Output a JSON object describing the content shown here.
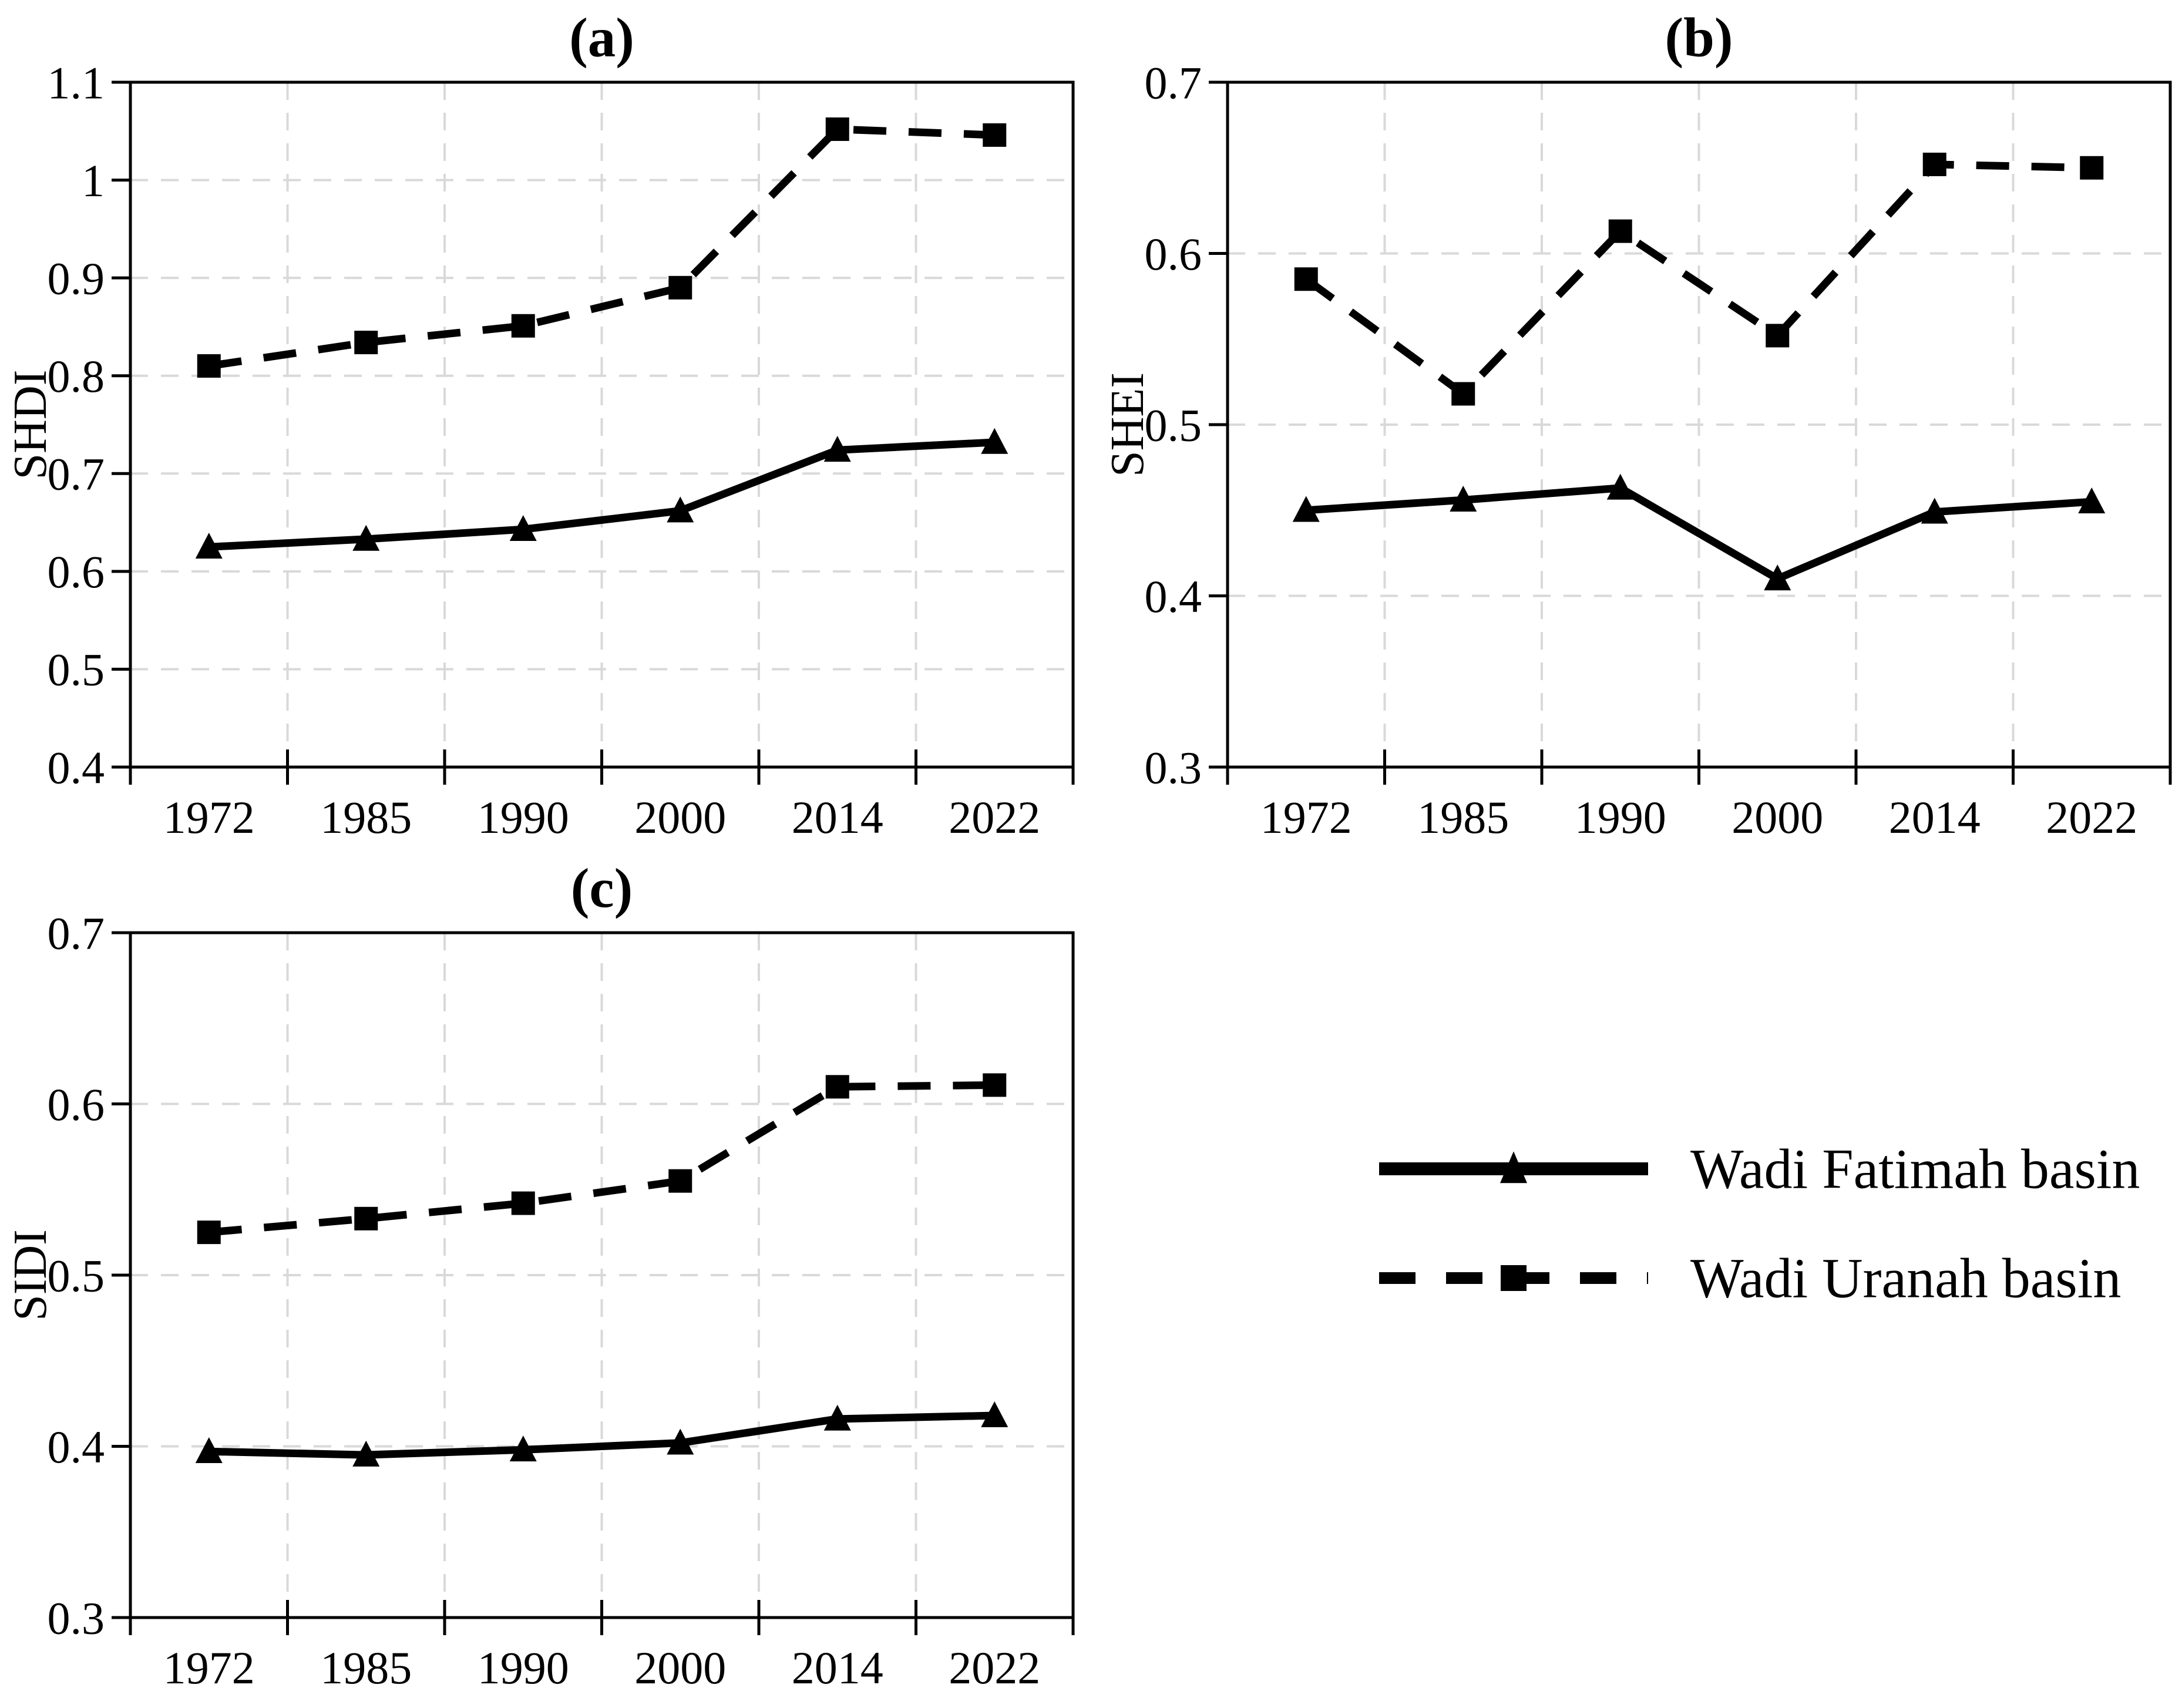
{
  "figure": {
    "background": "#ffffff",
    "colors": {
      "series": "#000000",
      "gridline": "#d9d9d9",
      "axis": "#000000",
      "text": "#000000"
    }
  },
  "legend": {
    "items": [
      {
        "label": "Wadi Fatimah basin",
        "line": "solid",
        "marker": "triangle"
      },
      {
        "label": "Wadi Uranah basin",
        "line": "dashed",
        "marker": "square"
      }
    ]
  },
  "chart_data": [
    {
      "type": "line",
      "panel": "a",
      "title": "(a)",
      "xlabel": "",
      "ylabel": "SHDI",
      "categories": [
        "1972",
        "1985",
        "1990",
        "2000",
        "2014",
        "2022"
      ],
      "ylim": [
        0.4,
        1.1
      ],
      "yticks": [
        0.4,
        0.5,
        0.6,
        0.7,
        0.8,
        0.9,
        1,
        1.1
      ],
      "ytick_labels": [
        "0.4",
        "0.5",
        "0.6",
        "0.7",
        "0.8",
        "0.9",
        "1",
        "1.1"
      ],
      "grid": true,
      "legend_position": "figure-bottom-right",
      "series": [
        {
          "name": "Wadi Fatimah basin",
          "line": "solid",
          "marker": "triangle",
          "values": [
            0.625,
            0.633,
            0.643,
            0.662,
            0.724,
            0.732
          ]
        },
        {
          "name": "Wadi Uranah basin",
          "line": "dashed",
          "marker": "square",
          "values": [
            0.81,
            0.834,
            0.851,
            0.89,
            1.052,
            1.046
          ]
        }
      ]
    },
    {
      "type": "line",
      "panel": "b",
      "title": "(b)",
      "xlabel": "",
      "ylabel": "SHEI",
      "categories": [
        "1972",
        "1985",
        "1990",
        "2000",
        "2014",
        "2022"
      ],
      "ylim": [
        0.3,
        0.7
      ],
      "yticks": [
        0.3,
        0.4,
        0.5,
        0.6,
        0.7
      ],
      "ytick_labels": [
        "0.3",
        "0.4",
        "0.5",
        "0.6",
        "0.7"
      ],
      "grid": true,
      "legend_position": "figure-bottom-right",
      "series": [
        {
          "name": "Wadi Fatimah basin",
          "line": "solid",
          "marker": "triangle",
          "values": [
            0.45,
            0.456,
            0.463,
            0.41,
            0.449,
            0.455
          ]
        },
        {
          "name": "Wadi Uranah basin",
          "line": "dashed",
          "marker": "square",
          "values": [
            0.585,
            0.518,
            0.613,
            0.552,
            0.652,
            0.65
          ]
        }
      ]
    },
    {
      "type": "line",
      "panel": "c",
      "title": "(c)",
      "xlabel": "",
      "ylabel": "SIDI",
      "categories": [
        "1972",
        "1985",
        "1990",
        "2000",
        "2014",
        "2022"
      ],
      "ylim": [
        0.3,
        0.7
      ],
      "yticks": [
        0.3,
        0.4,
        0.5,
        0.6,
        0.7
      ],
      "ytick_labels": [
        "0.3",
        "0.4",
        "0.5",
        "0.6",
        "0.7"
      ],
      "grid": true,
      "legend_position": "figure-bottom-right",
      "series": [
        {
          "name": "Wadi Fatimah basin",
          "line": "solid",
          "marker": "triangle",
          "values": [
            0.397,
            0.395,
            0.398,
            0.402,
            0.416,
            0.418
          ]
        },
        {
          "name": "Wadi Uranah basin",
          "line": "dashed",
          "marker": "square",
          "values": [
            0.525,
            0.533,
            0.542,
            0.555,
            0.61,
            0.611
          ]
        }
      ]
    }
  ]
}
